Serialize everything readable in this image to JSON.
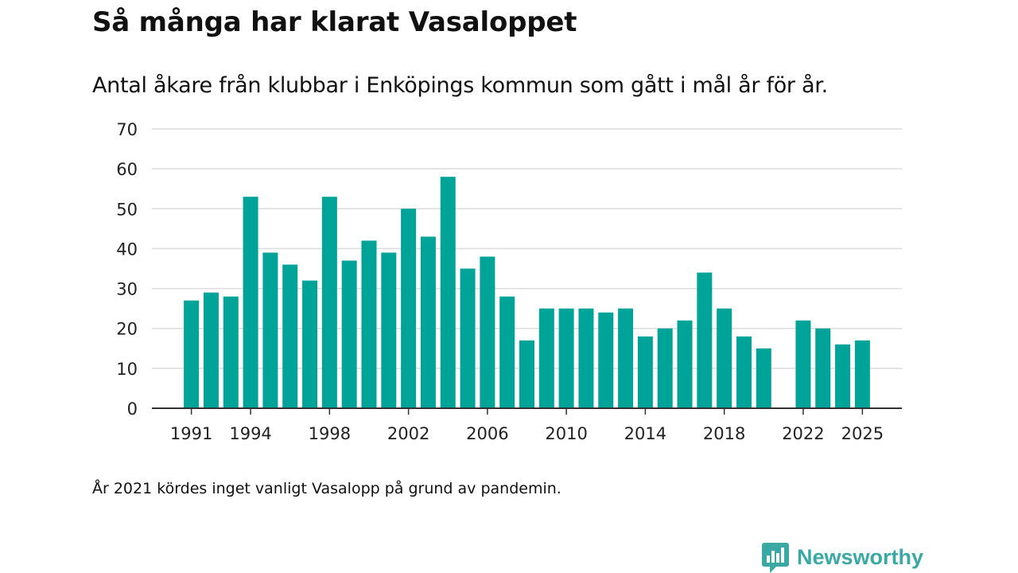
{
  "title": "Så många har klarat Vasaloppet",
  "subtitle": "Antal åkare från klubbar i Enköpings kommun som gått i mål år för år.",
  "footnote": "År 2021 kördes inget vanligt Vasalopp på grund av pandemin.",
  "brand": {
    "name": "Newsworthy",
    "icon": "newsworthy-logo-icon",
    "color": "#3aa8a4"
  },
  "chart_data": {
    "type": "bar",
    "title": "Så många har klarat Vasaloppet",
    "xlabel": "",
    "ylabel": "",
    "ylim": [
      0,
      70
    ],
    "yticks": [
      0,
      10,
      20,
      30,
      40,
      50,
      60,
      70
    ],
    "xlim": [
      1989,
      2027
    ],
    "xticks": [
      1991,
      1994,
      1998,
      2002,
      2006,
      2010,
      2014,
      2018,
      2022,
      2025
    ],
    "grid": true,
    "bar_color": "#00a397",
    "categories": [
      1991,
      1992,
      1993,
      1994,
      1995,
      1996,
      1997,
      1998,
      1999,
      2000,
      2001,
      2002,
      2003,
      2004,
      2005,
      2006,
      2007,
      2008,
      2009,
      2010,
      2011,
      2012,
      2013,
      2014,
      2015,
      2016,
      2017,
      2018,
      2019,
      2020,
      2022,
      2023,
      2024,
      2025
    ],
    "values": [
      27,
      29,
      28,
      53,
      39,
      36,
      32,
      53,
      37,
      42,
      39,
      50,
      43,
      58,
      35,
      38,
      28,
      17,
      25,
      25,
      25,
      24,
      25,
      18,
      20,
      22,
      34,
      25,
      18,
      15,
      22,
      20,
      16,
      17
    ]
  }
}
